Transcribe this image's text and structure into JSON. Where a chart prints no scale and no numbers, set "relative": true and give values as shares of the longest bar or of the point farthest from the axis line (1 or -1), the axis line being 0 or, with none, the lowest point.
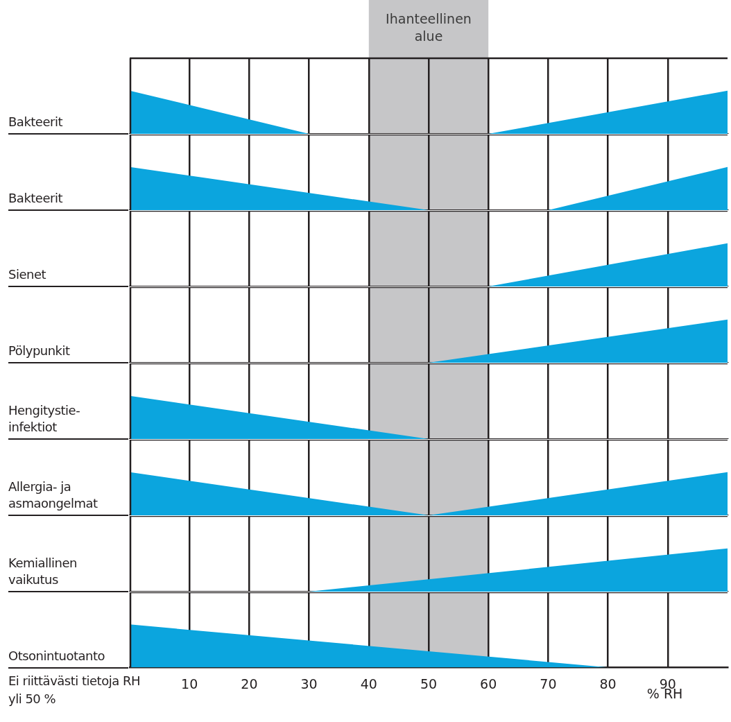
{
  "chart_data": [
    {
      "type": "area",
      "relative": true,
      "ylabel": "Bakteerit",
      "x": [
        0,
        30,
        60,
        100
      ],
      "series": [
        {
          "color": "#0ba5de",
          "values": [
            1,
            0,
            0,
            1
          ]
        }
      ],
      "xlim": [
        0,
        100
      ],
      "xticks": [
        10,
        20,
        30,
        40,
        50,
        60,
        70,
        80,
        90
      ],
      "grid": "x",
      "tick_labels": false,
      "bands": [
        {
          "axis": "x",
          "from": 40,
          "to": 60,
          "color": "#c6c6c8",
          "label": "Ihanteellinen alue"
        }
      ]
    },
    {
      "type": "area",
      "relative": true,
      "ylabel": "Bakteerit",
      "x": [
        0,
        50,
        70,
        100
      ],
      "series": [
        {
          "color": "#0ba5de",
          "values": [
            1,
            0,
            0,
            1
          ]
        }
      ],
      "xlim": [
        0,
        100
      ],
      "xticks": [
        10,
        20,
        30,
        40,
        50,
        60,
        70,
        80,
        90
      ],
      "grid": "x",
      "tick_labels": false,
      "bands": [
        {
          "axis": "x",
          "from": 40,
          "to": 60,
          "color": "#c6c6c8"
        }
      ]
    },
    {
      "type": "area",
      "relative": true,
      "ylabel": "Sienet",
      "x": [
        0,
        60,
        100
      ],
      "series": [
        {
          "color": "#0ba5de",
          "values": [
            0,
            0,
            1
          ]
        }
      ],
      "xlim": [
        0,
        100
      ],
      "xticks": [
        10,
        20,
        30,
        40,
        50,
        60,
        70,
        80,
        90
      ],
      "grid": "x",
      "tick_labels": false,
      "bands": [
        {
          "axis": "x",
          "from": 40,
          "to": 60,
          "color": "#c6c6c8"
        }
      ]
    },
    {
      "type": "area",
      "relative": true,
      "ylabel": "Pölypunkit",
      "x": [
        0,
        50,
        100
      ],
      "series": [
        {
          "color": "#0ba5de",
          "values": [
            0,
            0,
            1
          ]
        }
      ],
      "xlim": [
        0,
        100
      ],
      "xticks": [
        10,
        20,
        30,
        40,
        50,
        60,
        70,
        80,
        90
      ],
      "grid": "x",
      "tick_labels": false,
      "bands": [
        {
          "axis": "x",
          "from": 40,
          "to": 60,
          "color": "#c6c6c8"
        }
      ]
    },
    {
      "type": "area",
      "relative": true,
      "ylabel": "Hengitystie-infektiot",
      "x": [
        0,
        50,
        100
      ],
      "series": [
        {
          "color": "#0ba5de",
          "values": [
            1,
            0,
            0
          ]
        }
      ],
      "xlim": [
        0,
        100
      ],
      "xticks": [
        10,
        20,
        30,
        40,
        50,
        60,
        70,
        80,
        90
      ],
      "grid": "x",
      "tick_labels": false,
      "bands": [
        {
          "axis": "x",
          "from": 40,
          "to": 60,
          "color": "#c6c6c8"
        }
      ]
    },
    {
      "type": "area",
      "relative": true,
      "ylabel": "Allergia- ja asmaongelmat",
      "x": [
        0,
        50,
        100
      ],
      "series": [
        {
          "color": "#0ba5de",
          "values": [
            1,
            0,
            1
          ]
        }
      ],
      "xlim": [
        0,
        100
      ],
      "xticks": [
        10,
        20,
        30,
        40,
        50,
        60,
        70,
        80,
        90
      ],
      "grid": "x",
      "tick_labels": false,
      "bands": [
        {
          "axis": "x",
          "from": 40,
          "to": 60,
          "color": "#c6c6c8"
        }
      ]
    },
    {
      "type": "area",
      "relative": true,
      "ylabel": "Kemiallinen vaikutus",
      "x": [
        0,
        30,
        100
      ],
      "series": [
        {
          "color": "#0ba5de",
          "values": [
            0,
            0,
            1
          ]
        }
      ],
      "xlim": [
        0,
        100
      ],
      "xticks": [
        10,
        20,
        30,
        40,
        50,
        60,
        70,
        80,
        90
      ],
      "grid": "x",
      "tick_labels": false,
      "bands": [
        {
          "axis": "x",
          "from": 40,
          "to": 60,
          "color": "#c6c6c8"
        }
      ]
    },
    {
      "type": "area",
      "relative": true,
      "ylabel": "Otsonintuotanto",
      "xlabel": "% RH",
      "x": [
        0,
        80,
        100
      ],
      "series": [
        {
          "color": "#0ba5de",
          "values": [
            1,
            0,
            0
          ]
        }
      ],
      "xlim": [
        0,
        100
      ],
      "xticks": [
        10,
        20,
        30,
        40,
        50,
        60,
        70,
        80,
        90
      ],
      "grid": "x",
      "tick_labels": "x",
      "bands": [
        {
          "axis": "x",
          "from": 40,
          "to": 60,
          "color": "#c6c6c8"
        }
      ],
      "annotations": [
        "Ei riittävästi tietoja RH yli 50 %"
      ]
    }
  ]
}
